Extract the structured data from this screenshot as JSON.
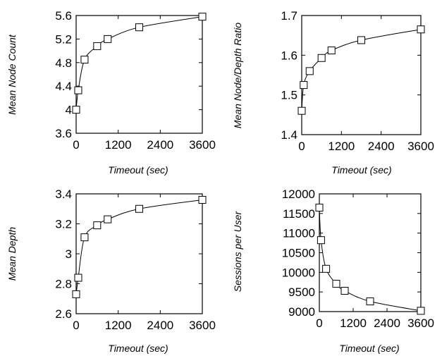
{
  "chart_data": [
    {
      "type": "line",
      "xlabel": "Timeout (sec)",
      "ylabel": "Mean Node Count",
      "xlim": [
        0,
        3600
      ],
      "ylim": [
        3.6,
        5.6
      ],
      "xticks": [
        "0",
        "1200",
        "2400",
        "3600"
      ],
      "yticks": [
        "3.6",
        "4",
        "4.4",
        "4.8",
        "5.2",
        "5.6"
      ],
      "series": [
        {
          "x": [
            0,
            60,
            240,
            600,
            900,
            1800,
            3600
          ],
          "y": [
            4.0,
            4.33,
            4.85,
            5.08,
            5.2,
            5.4,
            5.58
          ]
        }
      ]
    },
    {
      "type": "line",
      "xlabel": "Timeout (sec)",
      "ylabel": "Mean Node/Depth Ratio",
      "xlim": [
        0,
        3600
      ],
      "ylim": [
        1.4,
        1.7
      ],
      "xticks": [
        "0",
        "1200",
        "2400",
        "3600"
      ],
      "yticks": [
        "1.4",
        "1.5",
        "1.6",
        "1.7"
      ],
      "series": [
        {
          "x": [
            0,
            60,
            240,
            600,
            900,
            1800,
            3600
          ],
          "y": [
            1.46,
            1.525,
            1.56,
            1.593,
            1.612,
            1.638,
            1.665
          ]
        }
      ]
    },
    {
      "type": "line",
      "xlabel": "Timeout (sec)",
      "ylabel": "Mean Depth",
      "xlim": [
        0,
        3600
      ],
      "ylim": [
        2.6,
        3.4
      ],
      "xticks": [
        "0",
        "1200",
        "2400",
        "3600"
      ],
      "yticks": [
        "2.6",
        "2.8",
        "3",
        "3.2",
        "3.4"
      ],
      "series": [
        {
          "x": [
            0,
            60,
            240,
            600,
            900,
            1800,
            3600
          ],
          "y": [
            2.73,
            2.84,
            3.11,
            3.19,
            3.23,
            3.3,
            3.36
          ]
        }
      ]
    },
    {
      "type": "line",
      "xlabel": "Timeout (sec)",
      "ylabel": "Sessions per User",
      "xlim": [
        0,
        3600
      ],
      "ylim": [
        9000,
        12000
      ],
      "xticks": [
        "0",
        "1200",
        "2400",
        "3600"
      ],
      "yticks": [
        "9000",
        "9500",
        "10000",
        "10500",
        "11000",
        "11500",
        "12000"
      ],
      "series": [
        {
          "x": [
            0,
            60,
            240,
            600,
            900,
            1800,
            3600
          ],
          "y": [
            11650,
            10820,
            10090,
            9710,
            9530,
            9260,
            9020
          ]
        }
      ]
    }
  ]
}
